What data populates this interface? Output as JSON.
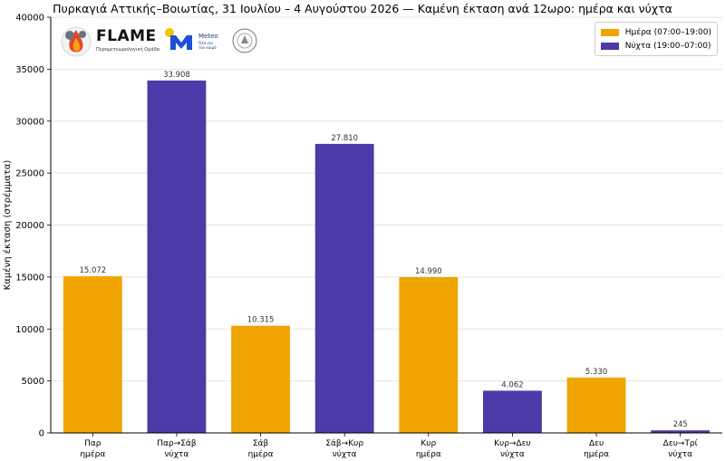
{
  "chart_data": {
    "type": "bar",
    "title": "Πυρκαγιά Αττικής–Βοιωτίας, 31 Ιουλίου – 4 Αυγούστου 2026 — Καμένη έκταση ανά 12ωρο: ημέρα και νύχτα",
    "ylabel": "Καμένη έκταση (στρέμματα)",
    "xlabel": "",
    "ylim": [
      0,
      40000
    ],
    "yticks": [
      0,
      5000,
      10000,
      15000,
      20000,
      25000,
      30000,
      35000,
      40000
    ],
    "grid": "horizontal",
    "legend_position": "top-right",
    "categories": [
      [
        "Παρ",
        "ημέρα"
      ],
      [
        "Παρ→Σάβ",
        "νύχτα"
      ],
      [
        "Σάβ",
        "ημέρα"
      ],
      [
        "Σάβ→Κυρ",
        "νύχτα"
      ],
      [
        "Κυρ",
        "ημέρα"
      ],
      [
        "Κυρ→Δευ",
        "νύχτα"
      ],
      [
        "Δευ",
        "ημέρα"
      ],
      [
        "Δευ→Τρί",
        "νύχτα"
      ]
    ],
    "values": [
      15072,
      33908,
      10315,
      27810,
      14990,
      4062,
      5330,
      245
    ],
    "value_labels": [
      "15.072",
      "33.908",
      "10.315",
      "27.810",
      "14.990",
      "4.062",
      "5.330",
      "245"
    ],
    "bar_series": [
      "day",
      "night",
      "day",
      "night",
      "day",
      "night",
      "day",
      "night"
    ],
    "series": [
      {
        "key": "day",
        "name": "Ημέρα (07:00–19:00)",
        "color": "#f0a500"
      },
      {
        "key": "night",
        "name": "Νύχτα (19:00–07:00)",
        "color": "#4b3aa8"
      }
    ]
  },
  "logos": {
    "flame_name": "FLAME",
    "flame_subtitle": "Πυρομετεωρολογική Ομάδα",
    "meteo_name": "Meteo",
    "meteo_subtitle": "Όλα για τον καιρό",
    "flame_icon": "flame-logo-icon",
    "meteo_icon": "meteo-logo-icon",
    "seal_icon": "observatory-seal-icon"
  }
}
